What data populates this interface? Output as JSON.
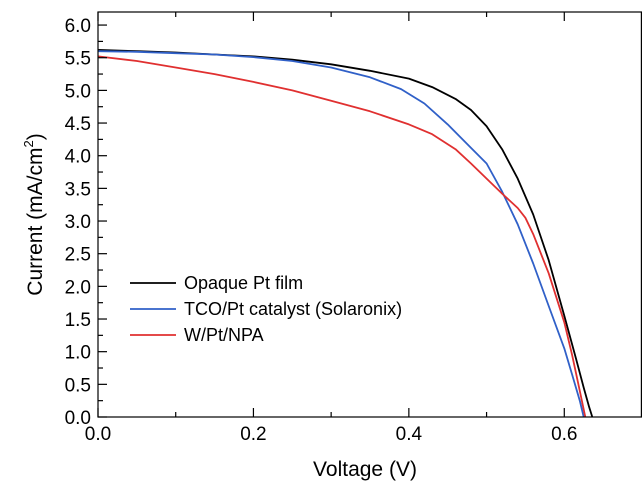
{
  "chart_data": {
    "type": "line",
    "title": "",
    "xlabel": "Voltage (V)",
    "ylabel_main": "Current (mA/cm",
    "ylabel_sup": "2",
    "ylabel_end": ")",
    "xlim": [
      0,
      0.7
    ],
    "ylim": [
      0,
      6.2
    ],
    "x_ticks": [
      0.0,
      0.2,
      0.4,
      0.6
    ],
    "x_tick_labels": [
      "0.0",
      "0.2",
      "0.4",
      "0.6"
    ],
    "y_ticks": [
      0.0,
      0.5,
      1.0,
      1.5,
      2.0,
      2.5,
      3.0,
      3.5,
      4.0,
      4.5,
      5.0,
      5.5,
      6.0
    ],
    "y_tick_labels": [
      "0.0",
      "0.5",
      "1.0",
      "1.5",
      "2.0",
      "2.5",
      "3.0",
      "3.5",
      "4.0",
      "4.5",
      "5.0",
      "5.5",
      "6.0"
    ],
    "grid": false,
    "legend_position": "lower-left",
    "series": [
      {
        "name": "Opaque Pt film",
        "color": "#000000",
        "points": [
          [
            0.0,
            5.62
          ],
          [
            0.05,
            5.6
          ],
          [
            0.1,
            5.58
          ],
          [
            0.15,
            5.55
          ],
          [
            0.2,
            5.52
          ],
          [
            0.25,
            5.47
          ],
          [
            0.3,
            5.4
          ],
          [
            0.35,
            5.3
          ],
          [
            0.4,
            5.18
          ],
          [
            0.43,
            5.05
          ],
          [
            0.46,
            4.87
          ],
          [
            0.48,
            4.7
          ],
          [
            0.5,
            4.45
          ],
          [
            0.52,
            4.1
          ],
          [
            0.54,
            3.65
          ],
          [
            0.56,
            3.1
          ],
          [
            0.58,
            2.4
          ],
          [
            0.6,
            1.55
          ],
          [
            0.615,
            0.9
          ],
          [
            0.625,
            0.45
          ],
          [
            0.632,
            0.15
          ],
          [
            0.636,
            0.0
          ]
        ]
      },
      {
        "name": "TCO/Pt catalyst (Solaronix)",
        "color": "#3060c8",
        "points": [
          [
            0.0,
            5.6
          ],
          [
            0.05,
            5.59
          ],
          [
            0.1,
            5.57
          ],
          [
            0.15,
            5.55
          ],
          [
            0.2,
            5.51
          ],
          [
            0.25,
            5.45
          ],
          [
            0.3,
            5.35
          ],
          [
            0.35,
            5.2
          ],
          [
            0.39,
            5.02
          ],
          [
            0.42,
            4.8
          ],
          [
            0.45,
            4.48
          ],
          [
            0.48,
            4.12
          ],
          [
            0.5,
            3.88
          ],
          [
            0.52,
            3.45
          ],
          [
            0.54,
            2.95
          ],
          [
            0.56,
            2.35
          ],
          [
            0.58,
            1.7
          ],
          [
            0.6,
            1.05
          ],
          [
            0.61,
            0.65
          ],
          [
            0.62,
            0.25
          ],
          [
            0.625,
            0.0
          ]
        ]
      },
      {
        "name": "W/Pt/NPA",
        "color": "#e03030",
        "points": [
          [
            0.0,
            5.52
          ],
          [
            0.05,
            5.45
          ],
          [
            0.1,
            5.35
          ],
          [
            0.15,
            5.25
          ],
          [
            0.2,
            5.13
          ],
          [
            0.25,
            5.0
          ],
          [
            0.3,
            4.84
          ],
          [
            0.35,
            4.68
          ],
          [
            0.4,
            4.48
          ],
          [
            0.43,
            4.33
          ],
          [
            0.46,
            4.1
          ],
          [
            0.48,
            3.88
          ],
          [
            0.5,
            3.65
          ],
          [
            0.52,
            3.42
          ],
          [
            0.54,
            3.2
          ],
          [
            0.55,
            3.05
          ],
          [
            0.56,
            2.8
          ],
          [
            0.58,
            2.2
          ],
          [
            0.6,
            1.45
          ],
          [
            0.61,
            0.95
          ],
          [
            0.62,
            0.4
          ],
          [
            0.627,
            0.0
          ]
        ]
      }
    ]
  }
}
